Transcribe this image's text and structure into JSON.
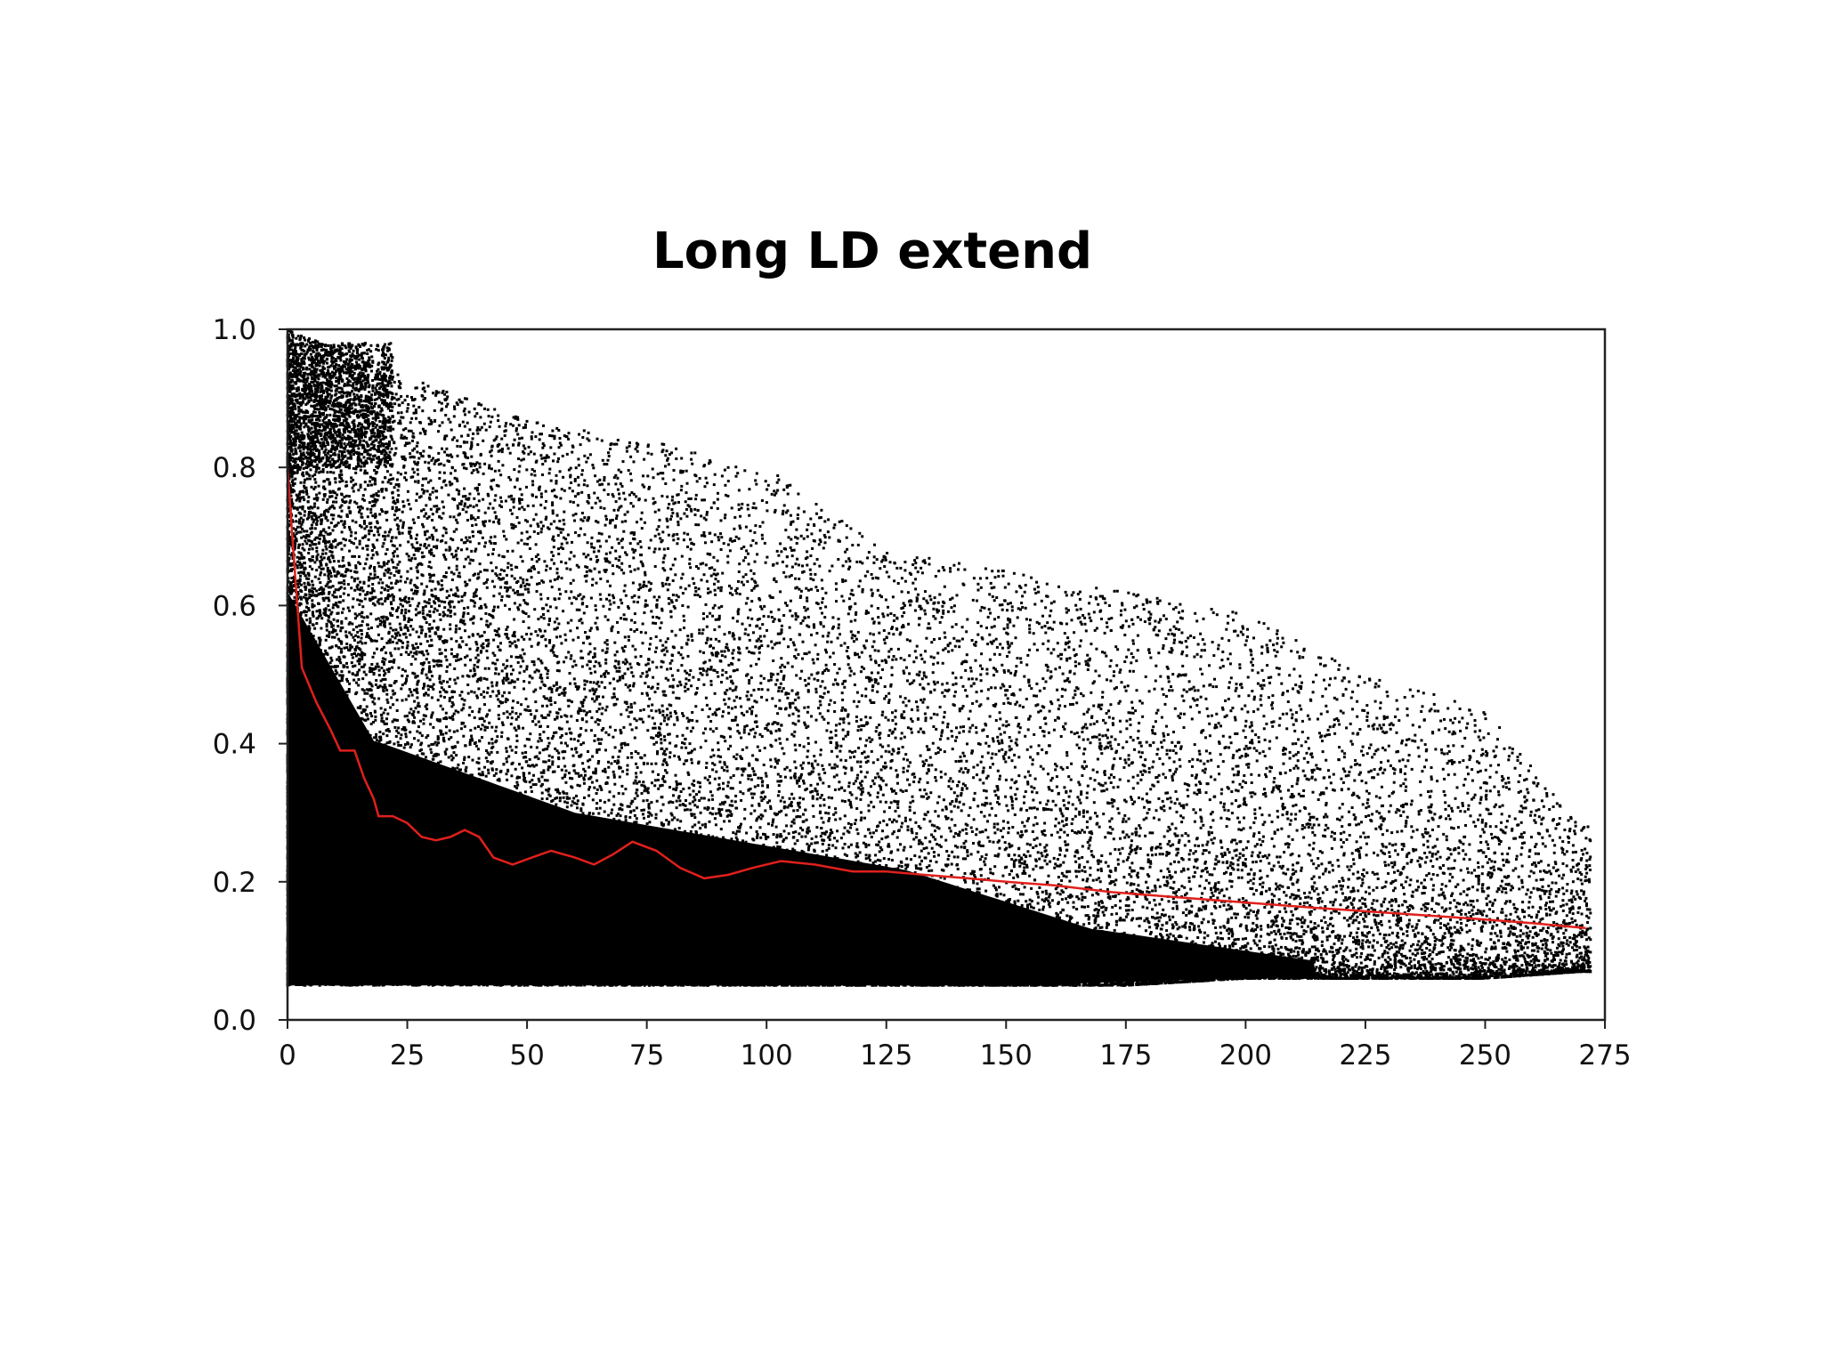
{
  "slide": {
    "title": "Long LD extend"
  },
  "chart_data": {
    "type": "scatter",
    "title": "Long LD extend",
    "xlabel": "",
    "ylabel": "",
    "xlim": [
      0,
      275
    ],
    "ylim": [
      0,
      1.0
    ],
    "x_ticks": [
      "0",
      "25",
      "50",
      "75",
      "100",
      "125",
      "150",
      "175",
      "200",
      "225",
      "250",
      "275"
    ],
    "y_ticks": [
      "0.0",
      "0.2",
      "0.4",
      "0.6",
      "0.8",
      "1.0"
    ],
    "grid": false,
    "legend": "none",
    "point_color": "#000000",
    "series": [
      {
        "kind": "points",
        "description_values": "dense cloud of pairwise values; density falls with x",
        "density_profile": [
          {
            "x": 0,
            "ymin": 0.05,
            "ymax": 1.0
          },
          {
            "x": 25,
            "ymin": 0.05,
            "ymax": 0.93
          },
          {
            "x": 50,
            "ymin": 0.05,
            "ymax": 0.87
          },
          {
            "x": 75,
            "ymin": 0.05,
            "ymax": 0.84
          },
          {
            "x": 100,
            "ymin": 0.05,
            "ymax": 0.8
          },
          {
            "x": 125,
            "ymin": 0.05,
            "ymax": 0.68
          },
          {
            "x": 150,
            "ymin": 0.05,
            "ymax": 0.65
          },
          {
            "x": 175,
            "ymin": 0.05,
            "ymax": 0.62
          },
          {
            "x": 200,
            "ymin": 0.06,
            "ymax": 0.59
          },
          {
            "x": 225,
            "ymin": 0.06,
            "ymax": 0.5
          },
          {
            "x": 250,
            "ymin": 0.06,
            "ymax": 0.45
          },
          {
            "x": 270,
            "ymin": 0.07,
            "ymax": 0.28
          }
        ]
      },
      {
        "kind": "line",
        "color": "#e0201c",
        "x": [
          0,
          1,
          3,
          6,
          9,
          11,
          14,
          16,
          18,
          19,
          22,
          25,
          28,
          31,
          34,
          37,
          40,
          43,
          47,
          51,
          55,
          60,
          64,
          68,
          72,
          77,
          82,
          87,
          92,
          97,
          103,
          110,
          118,
          125,
          133,
          142,
          150,
          160,
          172,
          185,
          200,
          215,
          230,
          245,
          260,
          271
        ],
        "y": [
          0.8,
          0.7,
          0.51,
          0.46,
          0.42,
          0.39,
          0.39,
          0.35,
          0.32,
          0.295,
          0.295,
          0.285,
          0.265,
          0.26,
          0.265,
          0.275,
          0.265,
          0.235,
          0.225,
          0.235,
          0.245,
          0.235,
          0.225,
          0.24,
          0.258,
          0.245,
          0.22,
          0.205,
          0.21,
          0.22,
          0.23,
          0.225,
          0.215,
          0.215,
          0.21,
          0.205,
          0.2,
          0.195,
          0.185,
          0.178,
          0.17,
          0.162,
          0.155,
          0.148,
          0.14,
          0.133
        ]
      }
    ]
  }
}
